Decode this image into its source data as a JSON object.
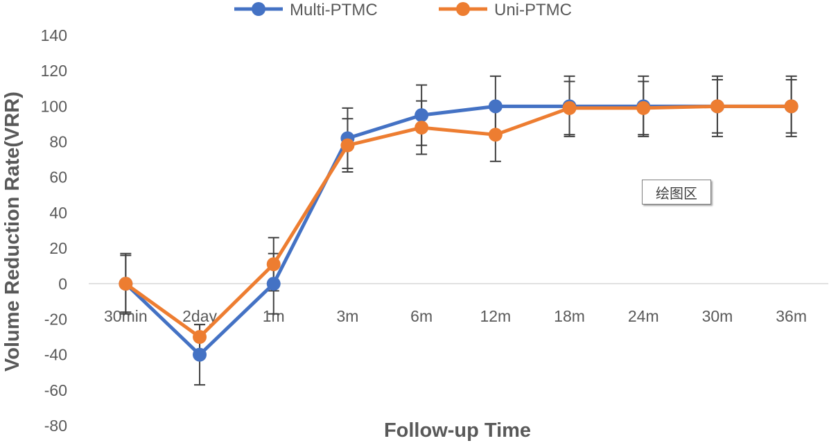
{
  "chart_data": {
    "type": "line",
    "title": "",
    "xlabel": "Follow-up Time",
    "ylabel": "Volume Reduction Rate(VRR)",
    "categories": [
      "30min",
      "2day",
      "1m",
      "3m",
      "6m",
      "12m",
      "18m",
      "24m",
      "30m",
      "36m"
    ],
    "ylim": [
      -80,
      140
    ],
    "yticks": [
      140,
      120,
      100,
      80,
      60,
      40,
      20,
      0,
      -20,
      -40,
      -60,
      -80
    ],
    "grid": false,
    "legend_position": "top",
    "series": [
      {
        "name": "Multi-PTMC",
        "color": "#4472C4",
        "values": [
          0,
          -40,
          0,
          82,
          95,
          100,
          100,
          100,
          100,
          100
        ],
        "error": [
          17,
          17,
          17,
          17,
          17,
          17,
          17,
          17,
          17,
          17
        ]
      },
      {
        "name": "Uni-PTMC",
        "color": "#ED7D31",
        "values": [
          0,
          -30,
          11,
          78,
          88,
          84,
          99,
          99,
          100,
          100
        ],
        "error": [
          16,
          7,
          15,
          15,
          15,
          15,
          15,
          15,
          15,
          15
        ]
      }
    ]
  },
  "tooltip": {
    "text": "绘图区"
  }
}
